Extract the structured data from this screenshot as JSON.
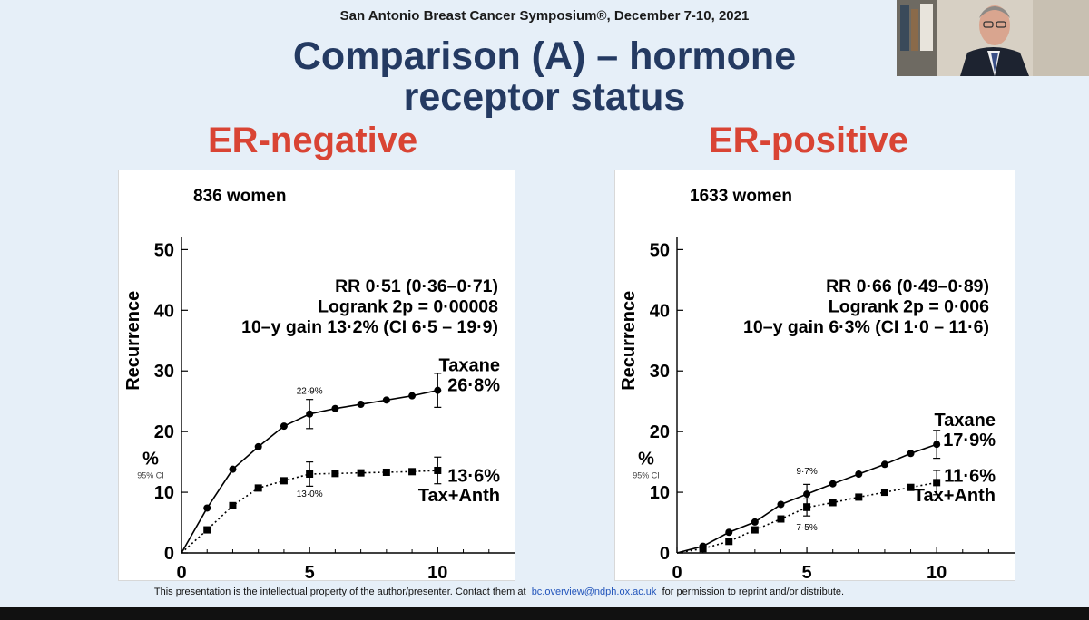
{
  "header": {
    "conference": "San Antonio Breast Cancer Symposium®, December 7-10, 2021",
    "title_line1": "Comparison (A) – hormone",
    "title_line2": "receptor status"
  },
  "footer": {
    "text_before": "This presentation is the intellectual property of the author/presenter. Contact them at",
    "email": "bc.overview@ndph.ox.ac.uk",
    "text_after": "for permission to reprint and/or distribute."
  },
  "colors": {
    "title": "#243a62",
    "subhead": "#d94434",
    "background": "#e6eff8"
  },
  "chart_data": [
    {
      "type": "line",
      "subtitle": "ER-negative",
      "count_label": "836 women",
      "xlabel": "",
      "ylabel": "Recurrence",
      "ylabel_extra": "%",
      "ci_label": "95% CI",
      "xlim": [
        0,
        13
      ],
      "ylim": [
        0,
        52
      ],
      "xticks": [
        0,
        5,
        10
      ],
      "yticks": [
        0,
        10,
        20,
        30,
        40,
        50
      ],
      "stats": [
        "RR 0·51 (0·36–0·71)",
        "Logrank 2p = 0·00008",
        "10–y gain 13·2% (CI 6·5 – 19·9)"
      ],
      "series": [
        {
          "name": "Taxane",
          "end_label": "26·8%",
          "marker": "circle",
          "x": [
            0,
            1,
            2,
            3,
            4,
            5,
            6,
            7,
            8,
            9,
            10
          ],
          "y": [
            0,
            7.4,
            13.8,
            17.5,
            20.9,
            22.9,
            23.8,
            24.5,
            25.2,
            25.9,
            26.8
          ]
        },
        {
          "name": "Tax+Anth",
          "end_label": "13·6%",
          "marker": "square",
          "x": [
            0,
            1,
            2,
            3,
            4,
            5,
            6,
            7,
            8,
            9,
            10
          ],
          "y": [
            0,
            3.8,
            7.8,
            10.7,
            11.9,
            13.0,
            13.1,
            13.2,
            13.3,
            13.4,
            13.6
          ]
        }
      ],
      "annotations": [
        {
          "text": "22·9%",
          "x": 5,
          "y": 22.9
        },
        {
          "text": "13·0%",
          "x": 5,
          "y": 13.0
        }
      ],
      "errorbars": [
        {
          "x": 5,
          "lo": 20.5,
          "hi": 25.3
        },
        {
          "x": 10,
          "lo": 24.0,
          "hi": 29.6
        },
        {
          "x": 5,
          "lo": 11.0,
          "hi": 15.0
        },
        {
          "x": 10,
          "lo": 11.4,
          "hi": 15.8
        }
      ]
    },
    {
      "type": "line",
      "subtitle": "ER-positive",
      "count_label": "1633 women",
      "xlabel": "",
      "ylabel": "Recurrence",
      "ylabel_extra": "%",
      "ci_label": "95% CI",
      "xlim": [
        0,
        13
      ],
      "ylim": [
        0,
        52
      ],
      "xticks": [
        0,
        5,
        10
      ],
      "yticks": [
        0,
        10,
        20,
        30,
        40,
        50
      ],
      "stats": [
        "RR 0·66 (0·49–0·89)",
        "Logrank 2p = 0·006",
        "10–y gain 6·3% (CI 1·0 – 11·6)"
      ],
      "series": [
        {
          "name": "Taxane",
          "end_label": "17·9%",
          "marker": "circle",
          "x": [
            0,
            1,
            2,
            3,
            4,
            5,
            6,
            7,
            8,
            9,
            10
          ],
          "y": [
            0,
            1.1,
            3.4,
            5.1,
            8.0,
            9.7,
            11.4,
            13.0,
            14.6,
            16.4,
            17.9
          ]
        },
        {
          "name": "Tax+Anth",
          "end_label": "11·6%",
          "marker": "square",
          "x": [
            0,
            1,
            2,
            3,
            4,
            5,
            6,
            7,
            8,
            9,
            10
          ],
          "y": [
            0,
            0.7,
            1.9,
            3.8,
            5.6,
            7.5,
            8.3,
            9.2,
            10.0,
            10.8,
            11.6
          ]
        }
      ],
      "annotations": [
        {
          "text": "9·7%",
          "x": 5,
          "y": 9.7
        },
        {
          "text": "7·5%",
          "x": 5,
          "y": 7.5
        }
      ],
      "errorbars": [
        {
          "x": 5,
          "lo": 8.1,
          "hi": 11.3
        },
        {
          "x": 10,
          "lo": 15.6,
          "hi": 20.2
        },
        {
          "x": 5,
          "lo": 6.1,
          "hi": 8.9
        },
        {
          "x": 10,
          "lo": 9.6,
          "hi": 13.6
        }
      ]
    }
  ]
}
